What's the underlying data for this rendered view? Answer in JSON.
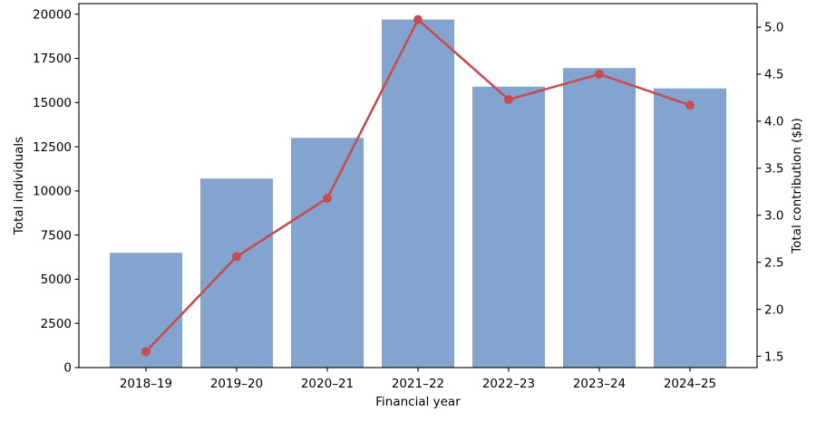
{
  "chart_data": {
    "type": "combo-bar-line",
    "title": "",
    "categories": [
      "2018–19",
      "2019–20",
      "2020–21",
      "2021–22",
      "2022–23",
      "2023–24",
      "2024–25"
    ],
    "series": [
      {
        "name": "Total individuals",
        "type": "bar",
        "axis": "left",
        "color": "#82a4cf",
        "values": [
          6500,
          10700,
          13000,
          19700,
          15900,
          16950,
          15800
        ]
      },
      {
        "name": "Total contribution ($b)",
        "type": "line",
        "axis": "right",
        "color": "#c44e52",
        "marker": "circle",
        "values": [
          1.55,
          2.56,
          3.18,
          5.08,
          4.23,
          4.5,
          4.17
        ]
      }
    ],
    "xlabel": "Financial year",
    "left_axis": {
      "label": "Total individuals",
      "ticks": [
        0,
        2500,
        5000,
        7500,
        10000,
        12500,
        15000,
        17500,
        20000
      ],
      "tick_labels": [
        "0",
        "2500",
        "5000",
        "7500",
        "10000",
        "12500",
        "15000",
        "17500",
        "20000"
      ],
      "range": [
        0,
        20600
      ]
    },
    "right_axis": {
      "label": "Total contribution ($b)",
      "ticks": [
        1.5,
        2.0,
        2.5,
        3.0,
        3.5,
        4.0,
        4.5,
        5.0
      ],
      "tick_labels": [
        "1.5",
        "2.0",
        "2.5",
        "3.0",
        "3.5",
        "4.0",
        "4.5",
        "5.0"
      ],
      "range": [
        1.38,
        5.25
      ]
    },
    "grid": false,
    "legend": "none",
    "background": "#ffffff",
    "spine_color": "#000000",
    "text_color": "#000000"
  }
}
